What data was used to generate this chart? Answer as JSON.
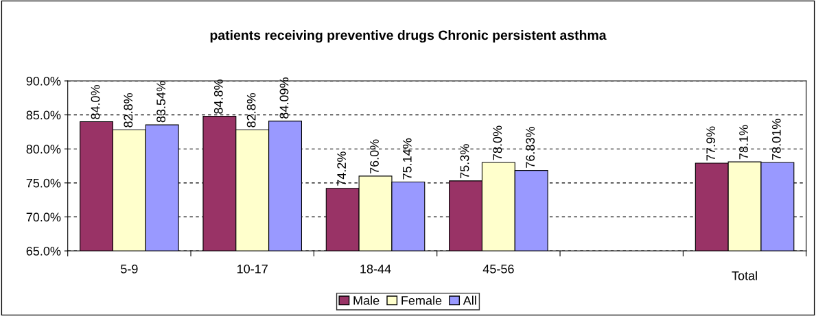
{
  "chart_data": {
    "type": "bar",
    "title": "patients receiving preventive drugs Chronic persistent asthma",
    "categories": [
      "5-9",
      "10-17",
      "18-44",
      "45-56",
      null,
      "Total"
    ],
    "series": [
      {
        "name": "Male",
        "color": "#993366",
        "values": [
          84.0,
          84.8,
          74.2,
          75.3,
          null,
          77.9
        ],
        "value_labels": [
          "84.0%",
          "84.8%",
          "74.2%",
          "75.3%",
          null,
          "77.9%"
        ]
      },
      {
        "name": "Female",
        "color": "#ffffcc",
        "values": [
          82.8,
          82.8,
          76.0,
          78.0,
          null,
          78.1
        ],
        "value_labels": [
          "82.8%",
          "82.8%",
          "76.0%",
          "78.0%",
          null,
          "78.1%"
        ]
      },
      {
        "name": "All",
        "color": "#9999ff",
        "values": [
          83.54,
          84.09,
          75.14,
          76.83,
          null,
          78.01
        ],
        "value_labels": [
          "83.54%",
          "84.09%",
          "75.14%",
          "76.83%",
          null,
          "78.01%"
        ]
      }
    ],
    "ylim": [
      65,
      90
    ],
    "yticks": [
      {
        "value": 65,
        "label": "65.0%"
      },
      {
        "value": 70,
        "label": "70.0%"
      },
      {
        "value": 75,
        "label": "75.0%"
      },
      {
        "value": 80,
        "label": "80.0%"
      },
      {
        "value": 85,
        "label": "85.0%"
      },
      {
        "value": 90,
        "label": "90.0%"
      }
    ],
    "grid": "y",
    "legend": "bottom"
  }
}
